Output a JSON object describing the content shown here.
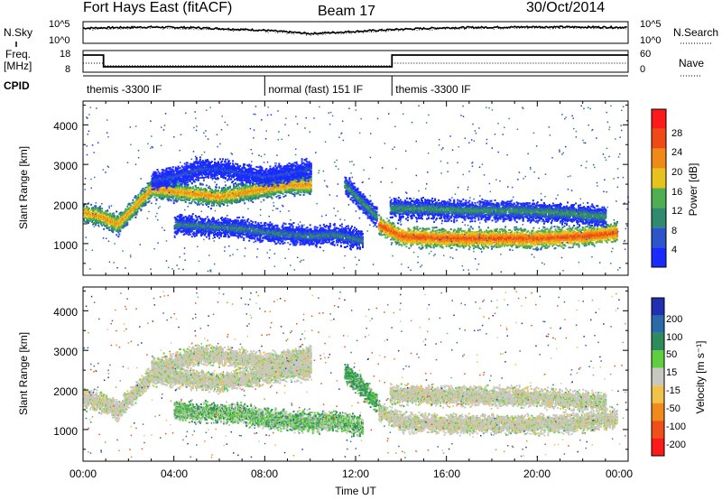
{
  "header": {
    "station": "Fort Hays East (fitACF)",
    "beam": "Beam 17",
    "date": "30/Oct/2014"
  },
  "strip_noise": {
    "left_label": "N.Sky",
    "right_label": "N.Search",
    "left_ticks": [
      "10^5",
      "10^0"
    ],
    "right_ticks": [
      "10^5",
      "10^0"
    ]
  },
  "strip_freq": {
    "left_label_top": "Freq.",
    "left_label_bottom": "[MHz]",
    "right_label": "Nave",
    "left_ticks": [
      "18",
      "8"
    ],
    "right_ticks": [
      "60",
      "0"
    ]
  },
  "cpid": {
    "label": "CPID",
    "segments": [
      {
        "text": "themis -3300 IF",
        "start": 0.0,
        "end": 8.0
      },
      {
        "text": "normal (fast) 151 IF",
        "start": 8.0,
        "end": 13.6
      },
      {
        "text": "themis -3300 IF",
        "start": 13.6,
        "end": 24.0
      }
    ]
  },
  "x_axis": {
    "label": "Time UT",
    "ticks": [
      "00:00",
      "04:00",
      "08:00",
      "12:00",
      "16:00",
      "20:00",
      "00:00"
    ]
  },
  "power_panel": {
    "ylabel": "Slant Range [km]",
    "yticks": [
      "1000",
      "2000",
      "3000",
      "4000"
    ],
    "colorbar_label": "Power [dB]",
    "colorbar_ticks": [
      "4",
      "8",
      "12",
      "16",
      "20",
      "24",
      "28"
    ],
    "colors": [
      "#1a2bff",
      "#2b55c8",
      "#2f8a6e",
      "#4fae4f",
      "#e8c21c",
      "#f08a16",
      "#ef4a16",
      "#ff1a1a"
    ]
  },
  "velocity_panel": {
    "ylabel": "Slant Range [km]",
    "yticks": [
      "1000",
      "2000",
      "3000",
      "4000"
    ],
    "colorbar_label": "Velocity [m s⁻¹]",
    "colorbar_ticks": [
      "200",
      "100",
      "50",
      "15",
      "-15",
      "-50",
      "-100",
      "-200"
    ],
    "colors": [
      "#2030b0",
      "#2a6aa8",
      "#2c8c5c",
      "#5ed040",
      "#c8c8c0",
      "#f0c24a",
      "#f08a1a",
      "#f05018",
      "#ff1a1a"
    ]
  },
  "chart_data": {
    "type": "heatmap",
    "x_range_hours": [
      0,
      24
    ],
    "y_range_km": [
      200,
      4600
    ],
    "noise_sky_trace": [
      [
        0,
        0.7
      ],
      [
        1,
        0.72
      ],
      [
        3,
        0.75
      ],
      [
        5,
        0.72
      ],
      [
        8,
        0.6
      ],
      [
        10,
        0.45
      ],
      [
        12,
        0.55
      ],
      [
        14,
        0.65
      ],
      [
        16,
        0.72
      ],
      [
        20,
        0.76
      ],
      [
        24,
        0.74
      ]
    ],
    "frequency_mhz": [
      [
        0,
        15.9
      ],
      [
        0.9,
        15.9
      ],
      [
        0.9,
        10.5
      ],
      [
        13.6,
        10.5
      ],
      [
        13.6,
        15.9
      ],
      [
        24,
        15.9
      ]
    ],
    "nave": [
      [
        0,
        25
      ],
      [
        0.9,
        25
      ],
      [
        0.9,
        18
      ],
      [
        13.6,
        18
      ],
      [
        13.6,
        25
      ],
      [
        24,
        25
      ]
    ],
    "echo_bands": [
      {
        "name": "",
        "t": [
          0,
          0.8,
          1.5,
          3,
          4.5,
          6,
          7,
          8,
          9,
          10
        ],
        "r": [
          1800,
          1700,
          1500,
          2400,
          2300,
          2200,
          2300,
          2400,
          2500,
          2500
        ],
        "power_db": 22,
        "velocity": 0
      },
      {
        "name": "",
        "t": [
          4,
          5.5,
          7,
          8,
          9,
          10,
          11,
          12.3
        ],
        "r": [
          1500,
          1450,
          1400,
          1300,
          1250,
          1200,
          1250,
          1100
        ],
        "power_db": 10,
        "velocity": 20
      },
      {
        "name": "",
        "t": [
          3,
          4,
          5,
          6,
          7,
          8,
          9,
          10
        ],
        "r": [
          2600,
          2700,
          2900,
          2900,
          2800,
          2700,
          2800,
          2900
        ],
        "power_db": 6,
        "velocity": 0
      },
      {
        "name": "",
        "t": [
          11.5,
          12.2,
          12.9
        ],
        "r": [
          2500,
          2100,
          1700
        ],
        "power_db": 12,
        "velocity": 30
      },
      {
        "name": "",
        "t": [
          13.0,
          14,
          16,
          18,
          20,
          22,
          23.5
        ],
        "r": [
          1500,
          1200,
          1150,
          1150,
          1150,
          1200,
          1300
        ],
        "power_db": 26,
        "velocity": 0
      },
      {
        "name": "",
        "t": [
          13.5,
          15,
          17,
          19,
          21,
          23
        ],
        "r": [
          1900,
          1900,
          1850,
          1850,
          1800,
          1700
        ],
        "power_db": 12,
        "velocity": 0
      }
    ]
  }
}
